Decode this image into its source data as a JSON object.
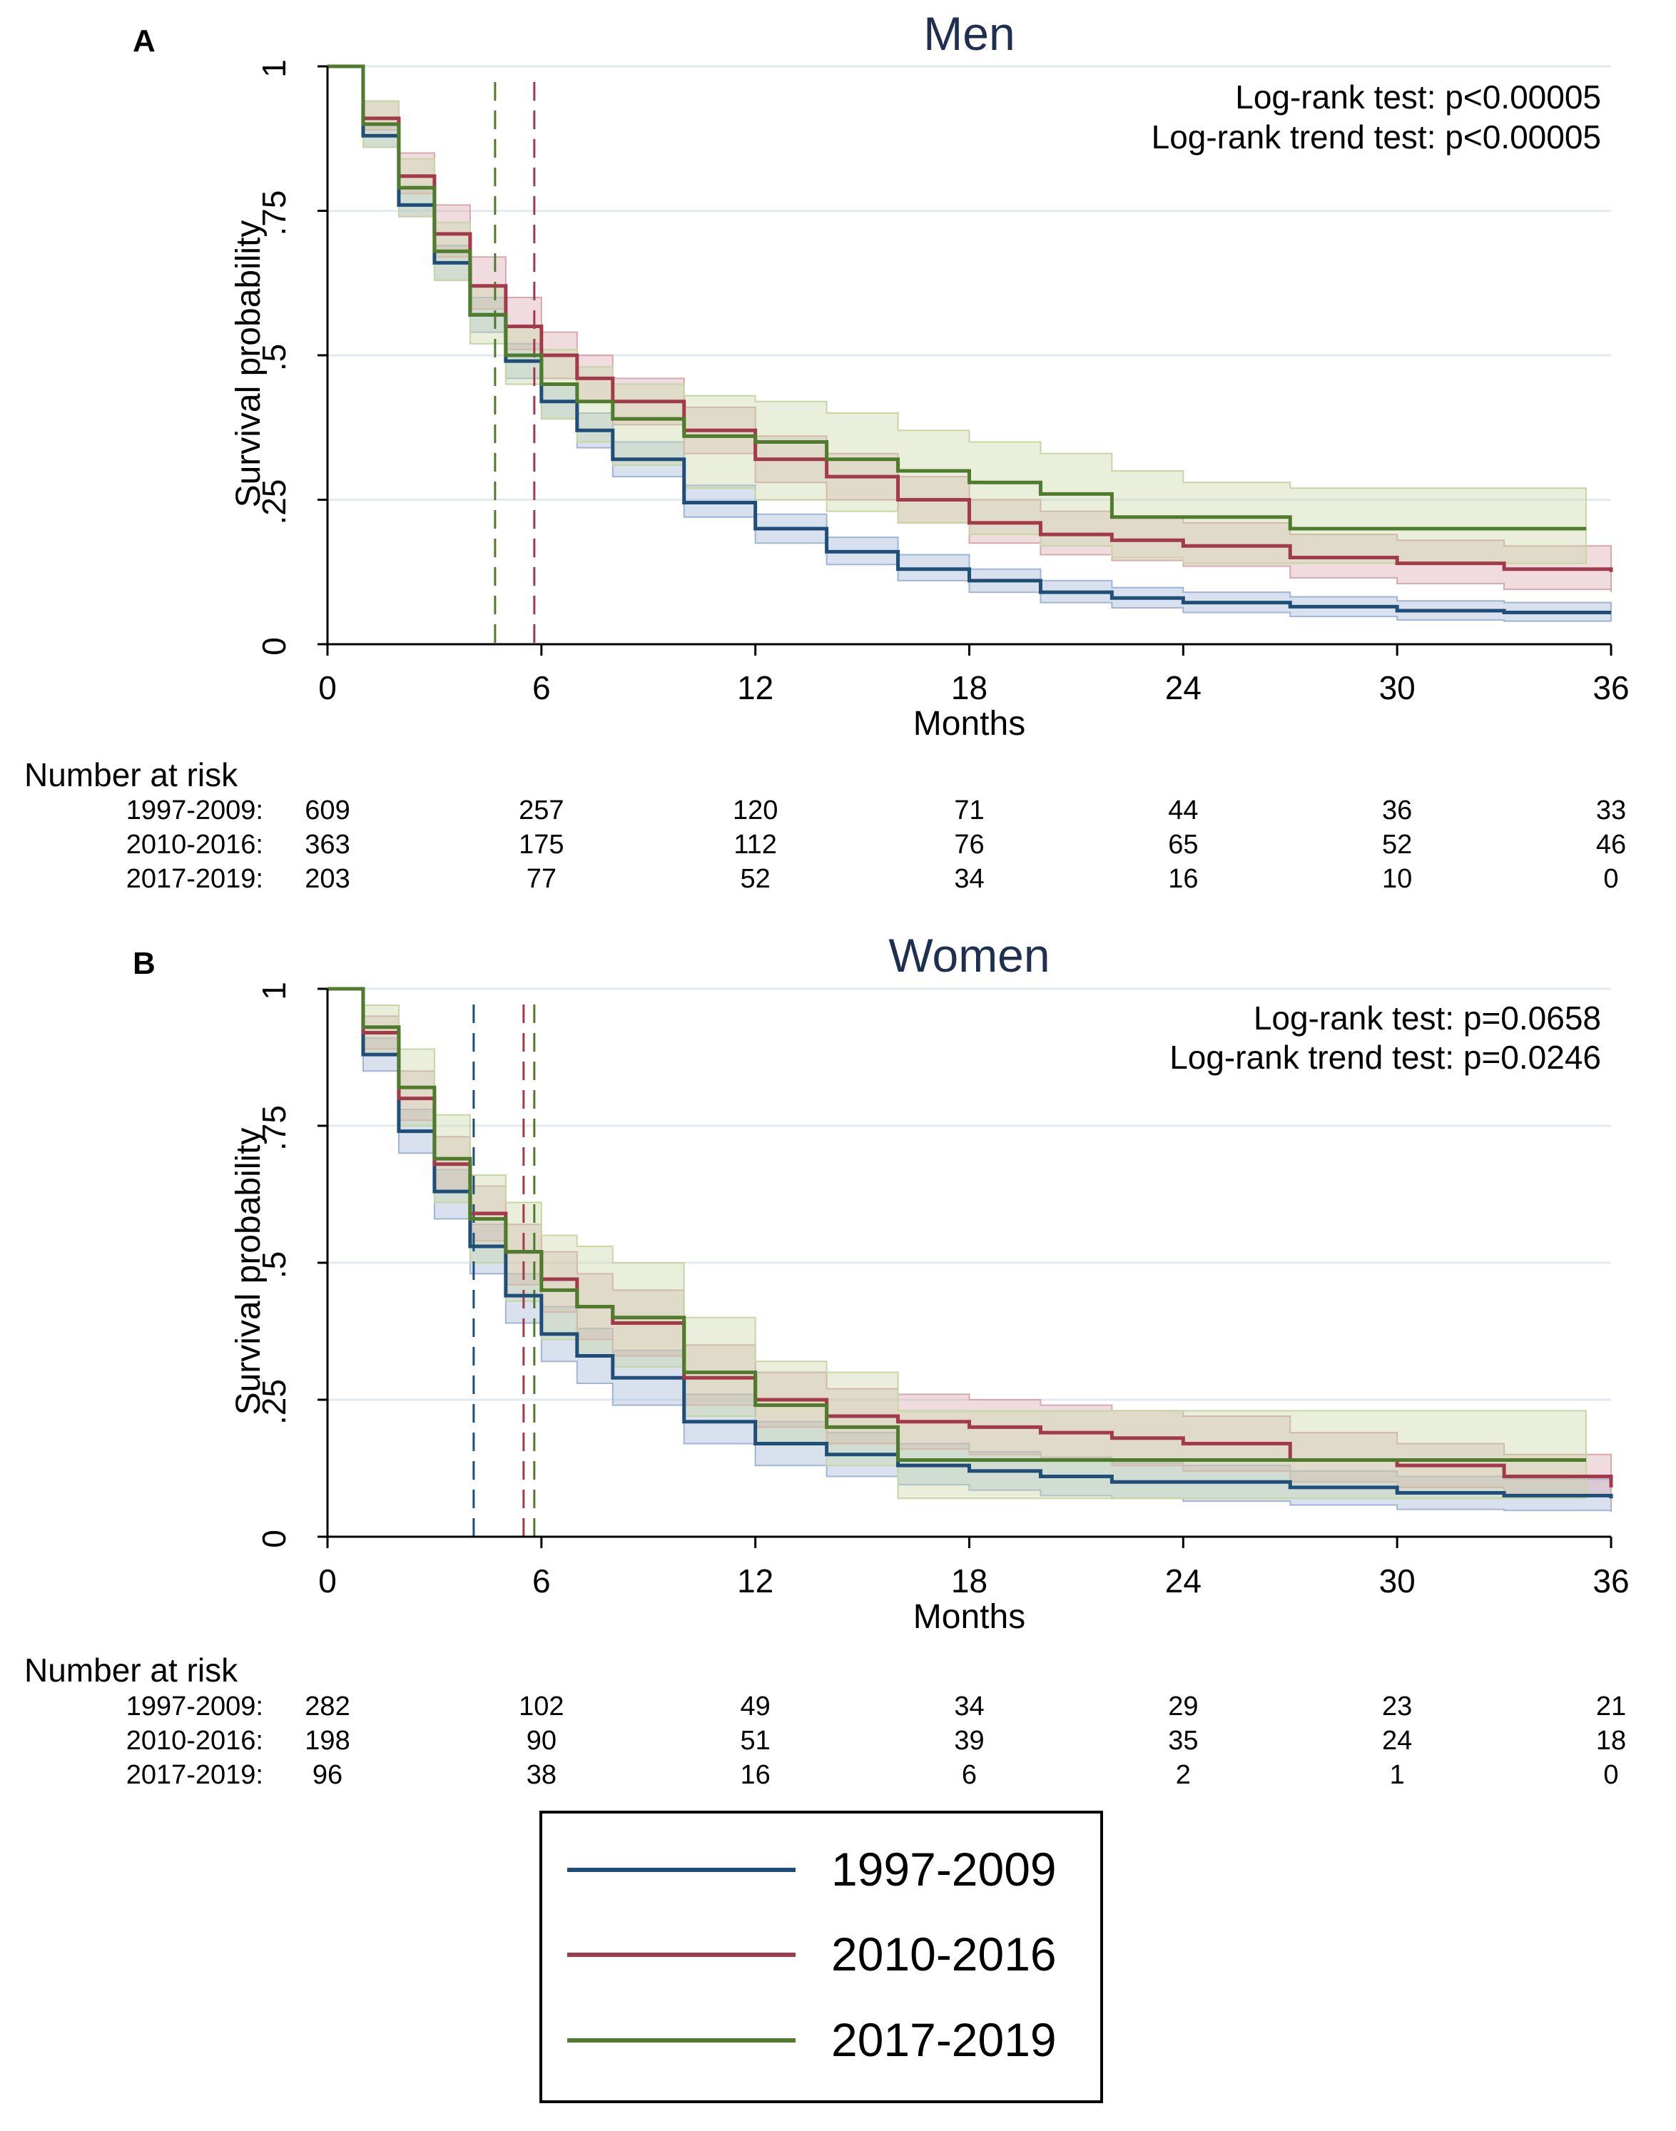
{
  "chart_data": [
    {
      "panel_label": "A",
      "type": "line",
      "subtype": "kaplan-meier",
      "title": "Men",
      "xlabel": "Months",
      "ylabel": "Survival probability",
      "xlim": [
        0,
        36
      ],
      "ylim": [
        0,
        1
      ],
      "xticks": [
        "0",
        "6",
        "12",
        "18",
        "24",
        "30",
        "36"
      ],
      "yticks": [
        "0",
        ".25",
        ".5",
        ".75",
        "1"
      ],
      "annotations": [
        "Log-rank test: p<0.00005",
        "Log-rank trend test: p<0.00005"
      ],
      "median_lines": [
        {
          "series": "2017-2019",
          "x": 4.7
        },
        {
          "series": "2010-2016",
          "x": 5.8
        }
      ],
      "risk_table": {
        "heading": "Number at risk",
        "times": [
          "0",
          "6",
          "12",
          "18",
          "24",
          "30",
          "36"
        ],
        "rows": [
          {
            "label": "1997-2009:",
            "values": [
              "609",
              "257",
              "120",
              "71",
              "44",
              "36",
              "33"
            ]
          },
          {
            "label": "2010-2016:",
            "values": [
              "363",
              "175",
              "112",
              "76",
              "65",
              "52",
              "46"
            ]
          },
          {
            "label": "2017-2019:",
            "values": [
              "203",
              "77",
              "52",
              "34",
              "16",
              "10",
              "0"
            ]
          }
        ]
      },
      "series": [
        {
          "name": "1997-2009",
          "color": "#1f4e79",
          "band_color": "#9fb4d6",
          "x_end": 36,
          "t": [
            0,
            1,
            2,
            3,
            4,
            5,
            6,
            7,
            8,
            10,
            12,
            14,
            16,
            18,
            20,
            22,
            24,
            27,
            30,
            33,
            36
          ],
          "s": [
            1.0,
            0.88,
            0.76,
            0.66,
            0.57,
            0.49,
            0.42,
            0.37,
            0.32,
            0.245,
            0.2,
            0.16,
            0.13,
            0.11,
            0.09,
            0.08,
            0.072,
            0.065,
            0.058,
            0.055,
            0.055
          ],
          "lo": [
            1.0,
            0.86,
            0.74,
            0.63,
            0.54,
            0.46,
            0.39,
            0.34,
            0.29,
            0.22,
            0.175,
            0.138,
            0.11,
            0.09,
            0.072,
            0.063,
            0.055,
            0.048,
            0.042,
            0.04,
            0.04
          ],
          "hi": [
            1.0,
            0.9,
            0.79,
            0.69,
            0.6,
            0.52,
            0.45,
            0.4,
            0.35,
            0.275,
            0.225,
            0.185,
            0.155,
            0.13,
            0.11,
            0.098,
            0.09,
            0.082,
            0.075,
            0.072,
            0.072
          ]
        },
        {
          "name": "2010-2016",
          "color": "#a33a4a",
          "band_color": "#d9a7ae",
          "x_end": 36,
          "t": [
            0,
            1,
            2,
            3,
            4,
            5,
            6,
            7,
            8,
            10,
            12,
            14,
            16,
            18,
            20,
            22,
            24,
            27,
            30,
            33,
            36
          ],
          "s": [
            1.0,
            0.91,
            0.81,
            0.71,
            0.62,
            0.55,
            0.5,
            0.46,
            0.42,
            0.37,
            0.32,
            0.29,
            0.25,
            0.21,
            0.19,
            0.18,
            0.17,
            0.15,
            0.14,
            0.13,
            0.125
          ],
          "lo": [
            1.0,
            0.89,
            0.78,
            0.67,
            0.58,
            0.51,
            0.46,
            0.42,
            0.38,
            0.33,
            0.28,
            0.25,
            0.21,
            0.175,
            0.155,
            0.145,
            0.135,
            0.115,
            0.105,
            0.095,
            0.09
          ],
          "hi": [
            1.0,
            0.94,
            0.85,
            0.76,
            0.67,
            0.6,
            0.54,
            0.5,
            0.46,
            0.41,
            0.36,
            0.33,
            0.29,
            0.25,
            0.23,
            0.22,
            0.21,
            0.19,
            0.18,
            0.17,
            0.165
          ]
        },
        {
          "name": "2017-2019",
          "color": "#4f7b2c",
          "band_color": "#c7d6a4",
          "x_end": 35.3,
          "t": [
            0,
            1,
            2,
            3,
            4,
            5,
            6,
            7,
            8,
            10,
            12,
            14,
            16,
            18,
            20,
            22,
            24,
            27,
            30,
            33,
            35.3
          ],
          "s": [
            1.0,
            0.9,
            0.79,
            0.68,
            0.57,
            0.5,
            0.45,
            0.42,
            0.39,
            0.36,
            0.35,
            0.32,
            0.3,
            0.28,
            0.26,
            0.22,
            0.22,
            0.2,
            0.2,
            0.2,
            0.2
          ],
          "lo": [
            1.0,
            0.86,
            0.74,
            0.63,
            0.52,
            0.45,
            0.39,
            0.35,
            0.31,
            0.27,
            0.25,
            0.23,
            0.21,
            0.19,
            0.17,
            0.15,
            0.14,
            0.14,
            0.14,
            0.14,
            0.14
          ],
          "hi": [
            1.0,
            0.94,
            0.84,
            0.73,
            0.62,
            0.55,
            0.51,
            0.48,
            0.45,
            0.43,
            0.42,
            0.4,
            0.37,
            0.35,
            0.33,
            0.3,
            0.28,
            0.27,
            0.27,
            0.27,
            0.27
          ]
        }
      ]
    },
    {
      "panel_label": "B",
      "type": "line",
      "subtype": "kaplan-meier",
      "title": "Women",
      "xlabel": "Months",
      "ylabel": "Survival probability",
      "xlim": [
        0,
        36
      ],
      "ylim": [
        0,
        1
      ],
      "xticks": [
        "0",
        "6",
        "12",
        "18",
        "24",
        "30",
        "36"
      ],
      "yticks": [
        "0",
        ".25",
        ".5",
        ".75",
        "1"
      ],
      "annotations": [
        "Log-rank test: p=0.0658",
        "Log-rank trend test: p=0.0246"
      ],
      "median_lines": [
        {
          "series": "1997-2009",
          "x": 4.1
        },
        {
          "series": "2010-2016",
          "x": 5.5
        },
        {
          "series": "2017-2019",
          "x": 5.8
        }
      ],
      "risk_table": {
        "heading": "Number at risk",
        "times": [
          "0",
          "6",
          "12",
          "18",
          "24",
          "30",
          "36"
        ],
        "rows": [
          {
            "label": "1997-2009:",
            "values": [
              "282",
              "102",
              "49",
              "34",
              "29",
              "23",
              "21"
            ]
          },
          {
            "label": "2010-2016:",
            "values": [
              "198",
              "90",
              "51",
              "39",
              "35",
              "24",
              "18"
            ]
          },
          {
            "label": "2017-2019:",
            "values": [
              "96",
              "38",
              "16",
              "6",
              "2",
              "1",
              "0"
            ]
          }
        ]
      },
      "series": [
        {
          "name": "1997-2009",
          "color": "#1f4e79",
          "band_color": "#9fb4d6",
          "x_end": 36,
          "t": [
            0,
            1,
            2,
            3,
            4,
            5,
            6,
            7,
            8,
            10,
            12,
            14,
            16,
            18,
            20,
            22,
            24,
            27,
            30,
            33,
            36
          ],
          "s": [
            1.0,
            0.88,
            0.74,
            0.63,
            0.53,
            0.44,
            0.37,
            0.33,
            0.29,
            0.21,
            0.17,
            0.15,
            0.13,
            0.12,
            0.11,
            0.1,
            0.1,
            0.09,
            0.08,
            0.075,
            0.07
          ],
          "lo": [
            1.0,
            0.85,
            0.7,
            0.58,
            0.48,
            0.39,
            0.32,
            0.28,
            0.24,
            0.17,
            0.13,
            0.11,
            0.095,
            0.085,
            0.075,
            0.07,
            0.065,
            0.058,
            0.05,
            0.048,
            0.045
          ],
          "hi": [
            1.0,
            0.91,
            0.78,
            0.67,
            0.57,
            0.48,
            0.42,
            0.38,
            0.34,
            0.26,
            0.21,
            0.19,
            0.17,
            0.155,
            0.145,
            0.135,
            0.13,
            0.12,
            0.11,
            0.105,
            0.1
          ]
        },
        {
          "name": "2010-2016",
          "color": "#a33a4a",
          "band_color": "#d9a7ae",
          "x_end": 36,
          "t": [
            0,
            1,
            2,
            3,
            4,
            5,
            6,
            7,
            8,
            10,
            12,
            14,
            16,
            18,
            20,
            22,
            24,
            27,
            30,
            33,
            36
          ],
          "s": [
            1.0,
            0.92,
            0.8,
            0.68,
            0.59,
            0.52,
            0.47,
            0.42,
            0.39,
            0.29,
            0.25,
            0.22,
            0.21,
            0.2,
            0.19,
            0.18,
            0.17,
            0.14,
            0.13,
            0.11,
            0.09
          ],
          "lo": [
            1.0,
            0.89,
            0.76,
            0.63,
            0.54,
            0.46,
            0.41,
            0.36,
            0.33,
            0.24,
            0.2,
            0.17,
            0.16,
            0.15,
            0.14,
            0.13,
            0.12,
            0.1,
            0.09,
            0.075,
            0.06
          ],
          "hi": [
            1.0,
            0.95,
            0.85,
            0.73,
            0.64,
            0.57,
            0.52,
            0.48,
            0.45,
            0.35,
            0.3,
            0.27,
            0.26,
            0.25,
            0.24,
            0.23,
            0.22,
            0.19,
            0.17,
            0.15,
            0.13
          ]
        },
        {
          "name": "2017-2019",
          "color": "#4f7b2c",
          "band_color": "#c7d6a4",
          "x_end": 35.3,
          "t": [
            0,
            1,
            2,
            3,
            4,
            5,
            6,
            7,
            8,
            10,
            12,
            14,
            16,
            18,
            20,
            22,
            24,
            27,
            30,
            33,
            35.3
          ],
          "s": [
            1.0,
            0.93,
            0.82,
            0.69,
            0.58,
            0.52,
            0.45,
            0.42,
            0.4,
            0.3,
            0.24,
            0.2,
            0.14,
            0.14,
            0.14,
            0.14,
            0.14,
            0.14,
            0.14,
            0.14,
            0.14
          ],
          "lo": [
            1.0,
            0.88,
            0.75,
            0.61,
            0.5,
            0.43,
            0.36,
            0.33,
            0.31,
            0.22,
            0.17,
            0.13,
            0.07,
            0.07,
            0.07,
            0.07,
            0.07,
            0.07,
            0.07,
            0.07,
            0.07
          ],
          "hi": [
            1.0,
            0.97,
            0.89,
            0.77,
            0.66,
            0.61,
            0.55,
            0.53,
            0.5,
            0.4,
            0.32,
            0.3,
            0.23,
            0.23,
            0.23,
            0.23,
            0.23,
            0.23,
            0.23,
            0.23,
            0.23
          ]
        }
      ]
    }
  ],
  "legend": {
    "items": [
      {
        "label": "1997-2009",
        "color": "#1f4e79"
      },
      {
        "label": "2010-2016",
        "color": "#a33a4a"
      },
      {
        "label": "2017-2019",
        "color": "#4f7b2c"
      }
    ]
  }
}
